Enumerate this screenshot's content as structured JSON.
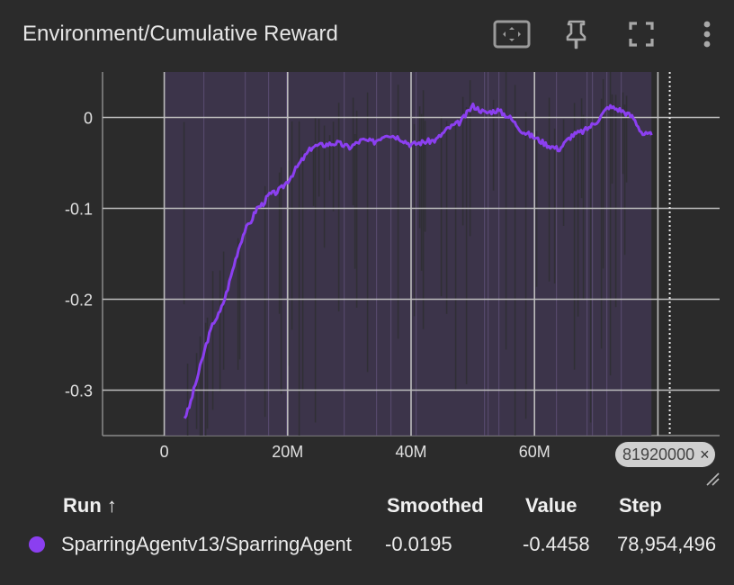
{
  "header": {
    "title": "Environment/Cumulative Reward",
    "tools": [
      "fit-domain-icon",
      "pin-icon",
      "fullscreen-icon",
      "more-vert-icon"
    ]
  },
  "colors": {
    "background": "#2b2b2b",
    "series": "#8b3ff0",
    "raw_band": "#4a3c5e"
  },
  "chart_data": {
    "type": "line",
    "title": "",
    "xlabel": "",
    "ylabel": "",
    "xlim": [
      -10000000,
      90000000
    ],
    "ylim": [
      -0.35,
      0.05
    ],
    "x_ticks": [
      {
        "value": 0,
        "label": "0"
      },
      {
        "value": 20000000,
        "label": "20M"
      },
      {
        "value": 40000000,
        "label": "40M"
      },
      {
        "value": 60000000,
        "label": "60M"
      }
    ],
    "y_ticks": [
      {
        "value": 0,
        "label": "0"
      },
      {
        "value": -0.1,
        "label": "-0.1"
      },
      {
        "value": -0.2,
        "label": "-0.2"
      },
      {
        "value": -0.3,
        "label": "-0.3"
      }
    ],
    "grid": true,
    "cursor_step": 81920000,
    "series": [
      {
        "name": "SparringAgentv13/SparringAgent",
        "color": "#8b3ff0",
        "x": [
          3300000,
          4000000,
          5000000,
          6000000,
          7000000,
          8000000,
          9000000,
          10000000,
          11000000,
          12000000,
          13000000,
          14000000,
          15000000,
          16000000,
          17000000,
          18000000,
          19000000,
          20000000,
          22000000,
          24000000,
          26000000,
          28000000,
          30000000,
          32000000,
          34000000,
          36000000,
          38000000,
          40000000,
          42000000,
          44000000,
          46000000,
          48000000,
          50000000,
          52000000,
          54000000,
          56000000,
          58000000,
          60000000,
          62000000,
          64000000,
          66000000,
          68000000,
          70000000,
          72000000,
          74000000,
          76000000,
          77500000,
          78954496
        ],
        "y": [
          -0.33,
          -0.32,
          -0.295,
          -0.27,
          -0.245,
          -0.225,
          -0.215,
          -0.195,
          -0.17,
          -0.145,
          -0.125,
          -0.115,
          -0.1,
          -0.095,
          -0.085,
          -0.083,
          -0.078,
          -0.07,
          -0.05,
          -0.032,
          -0.03,
          -0.028,
          -0.033,
          -0.025,
          -0.027,
          -0.018,
          -0.022,
          -0.03,
          -0.027,
          -0.025,
          -0.012,
          -0.005,
          0.013,
          0.005,
          0.008,
          0.0,
          -0.015,
          -0.022,
          -0.03,
          -0.035,
          -0.02,
          -0.015,
          -0.005,
          0.012,
          0.008,
          0.0,
          -0.018,
          -0.0195
        ]
      }
    ]
  },
  "badge": {
    "label": "81920000",
    "close": "×"
  },
  "table": {
    "headers": {
      "run": "Run ↑",
      "smoothed": "Smoothed",
      "value": "Value",
      "step": "Step"
    },
    "rows": [
      {
        "run": "SparringAgentv13/SparringAgent",
        "smoothed": "-0.0195",
        "value": "-0.4458",
        "step": "78,954,496",
        "color": "#8b3ff0"
      }
    ]
  }
}
